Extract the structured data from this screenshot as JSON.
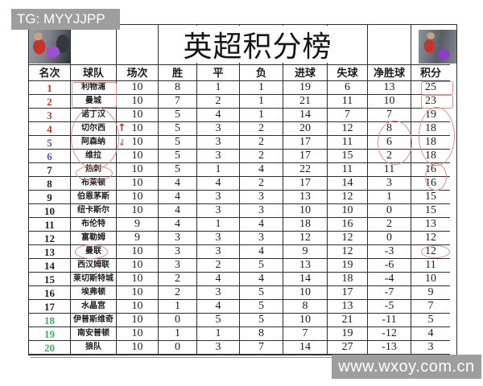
{
  "title": "英超积分榜",
  "watermarks": {
    "top_left": "TG: MYYJJPP",
    "bottom_right": "www.wxoy.com.cn"
  },
  "icons": {
    "up_arrow": "↑",
    "down_arrow": "↓"
  },
  "colors": {
    "rank_top": "#c13528",
    "rank_fifth": "#93379c",
    "rank_sixth": "#5b51c8",
    "rank_normal": "#212121",
    "rank_relegation": "#43ad68",
    "annotation": "#d89090",
    "arrow": "#cc2a2a",
    "watermark_bg": "#9e9e9e"
  },
  "table": {
    "headers": [
      "名次",
      "球队",
      "场次",
      "胜",
      "平",
      "负",
      "进球",
      "失球",
      "净胜球",
      "积分"
    ],
    "rows": [
      {
        "rank": "1",
        "color": "rank_top",
        "team": "利物浦",
        "p": "10",
        "w": "8",
        "d": "1",
        "l": "1",
        "gf": "19",
        "ga": "6",
        "gd": "13",
        "pts": "25"
      },
      {
        "rank": "2",
        "color": "rank_top",
        "team": "曼城",
        "p": "10",
        "w": "7",
        "d": "2",
        "l": "1",
        "gf": "21",
        "ga": "11",
        "gd": "10",
        "pts": "23"
      },
      {
        "rank": "3",
        "color": "rank_top",
        "team": "诺丁汉",
        "p": "10",
        "w": "5",
        "d": "4",
        "l": "1",
        "gf": "14",
        "ga": "7",
        "gd": "7",
        "pts": "19"
      },
      {
        "rank": "4",
        "color": "rank_top",
        "team": "切尔西",
        "p": "10",
        "w": "5",
        "d": "3",
        "l": "2",
        "gf": "20",
        "ga": "12",
        "gd": "8",
        "pts": "18"
      },
      {
        "rank": "5",
        "color": "rank_fifth",
        "team": "阿森纳",
        "p": "10",
        "w": "5",
        "d": "3",
        "l": "2",
        "gf": "17",
        "ga": "11",
        "gd": "6",
        "pts": "18"
      },
      {
        "rank": "6",
        "color": "rank_sixth",
        "team": "维拉",
        "p": "10",
        "w": "5",
        "d": "3",
        "l": "2",
        "gf": "17",
        "ga": "15",
        "gd": "2",
        "pts": "18"
      },
      {
        "rank": "7",
        "color": "rank_normal",
        "team": "热刺",
        "p": "10",
        "w": "5",
        "d": "1",
        "l": "4",
        "gf": "22",
        "ga": "11",
        "gd": "11",
        "pts": "16"
      },
      {
        "rank": "8",
        "color": "rank_normal",
        "team": "布莱顿",
        "p": "10",
        "w": "4",
        "d": "4",
        "l": "2",
        "gf": "17",
        "ga": "14",
        "gd": "3",
        "pts": "16"
      },
      {
        "rank": "9",
        "color": "rank_normal",
        "team": "伯恩茅斯",
        "p": "10",
        "w": "4",
        "d": "3",
        "l": "3",
        "gf": "13",
        "ga": "12",
        "gd": "1",
        "pts": "15"
      },
      {
        "rank": "10",
        "color": "rank_normal",
        "team": "纽卡斯尔",
        "p": "10",
        "w": "4",
        "d": "3",
        "l": "3",
        "gf": "10",
        "ga": "10",
        "gd": "0",
        "pts": "15"
      },
      {
        "rank": "11",
        "color": "rank_normal",
        "team": "布伦特",
        "p": "9",
        "w": "4",
        "d": "1",
        "l": "4",
        "gf": "18",
        "ga": "16",
        "gd": "2",
        "pts": "13"
      },
      {
        "rank": "12",
        "color": "rank_normal",
        "team": "富勒姆",
        "p": "9",
        "w": "3",
        "d": "3",
        "l": "3",
        "gf": "12",
        "ga": "12",
        "gd": "0",
        "pts": "12"
      },
      {
        "rank": "13",
        "color": "rank_normal",
        "team": "曼联",
        "p": "10",
        "w": "3",
        "d": "3",
        "l": "4",
        "gf": "9",
        "ga": "12",
        "gd": "-3",
        "pts": "12"
      },
      {
        "rank": "14",
        "color": "rank_normal",
        "team": "西汉姆联",
        "p": "10",
        "w": "3",
        "d": "2",
        "l": "5",
        "gf": "13",
        "ga": "19",
        "gd": "-6",
        "pts": "11"
      },
      {
        "rank": "15",
        "color": "rank_normal",
        "team": "莱切斯特城",
        "p": "10",
        "w": "2",
        "d": "4",
        "l": "4",
        "gf": "14",
        "ga": "18",
        "gd": "-4",
        "pts": "10"
      },
      {
        "rank": "16",
        "color": "rank_normal",
        "team": "埃弗顿",
        "p": "10",
        "w": "2",
        "d": "3",
        "l": "5",
        "gf": "10",
        "ga": "17",
        "gd": "-7",
        "pts": "9"
      },
      {
        "rank": "17",
        "color": "rank_normal",
        "team": "水晶宫",
        "p": "10",
        "w": "1",
        "d": "4",
        "l": "5",
        "gf": "8",
        "ga": "13",
        "gd": "-5",
        "pts": "7"
      },
      {
        "rank": "18",
        "color": "rank_relegation",
        "team": "伊普斯维奇",
        "p": "10",
        "w": "0",
        "d": "5",
        "l": "5",
        "gf": "10",
        "ga": "21",
        "gd": "-11",
        "pts": "5"
      },
      {
        "rank": "19",
        "color": "rank_relegation",
        "team": "南安普顿",
        "p": "10",
        "w": "1",
        "d": "1",
        "l": "8",
        "gf": "7",
        "ga": "19",
        "gd": "-12",
        "pts": "4"
      },
      {
        "rank": "20",
        "color": "rank_relegation",
        "team": "狼队",
        "p": "10",
        "w": "0",
        "d": "3",
        "l": "7",
        "gf": "14",
        "ga": "27",
        "gd": "-13",
        "pts": "3"
      }
    ]
  }
}
